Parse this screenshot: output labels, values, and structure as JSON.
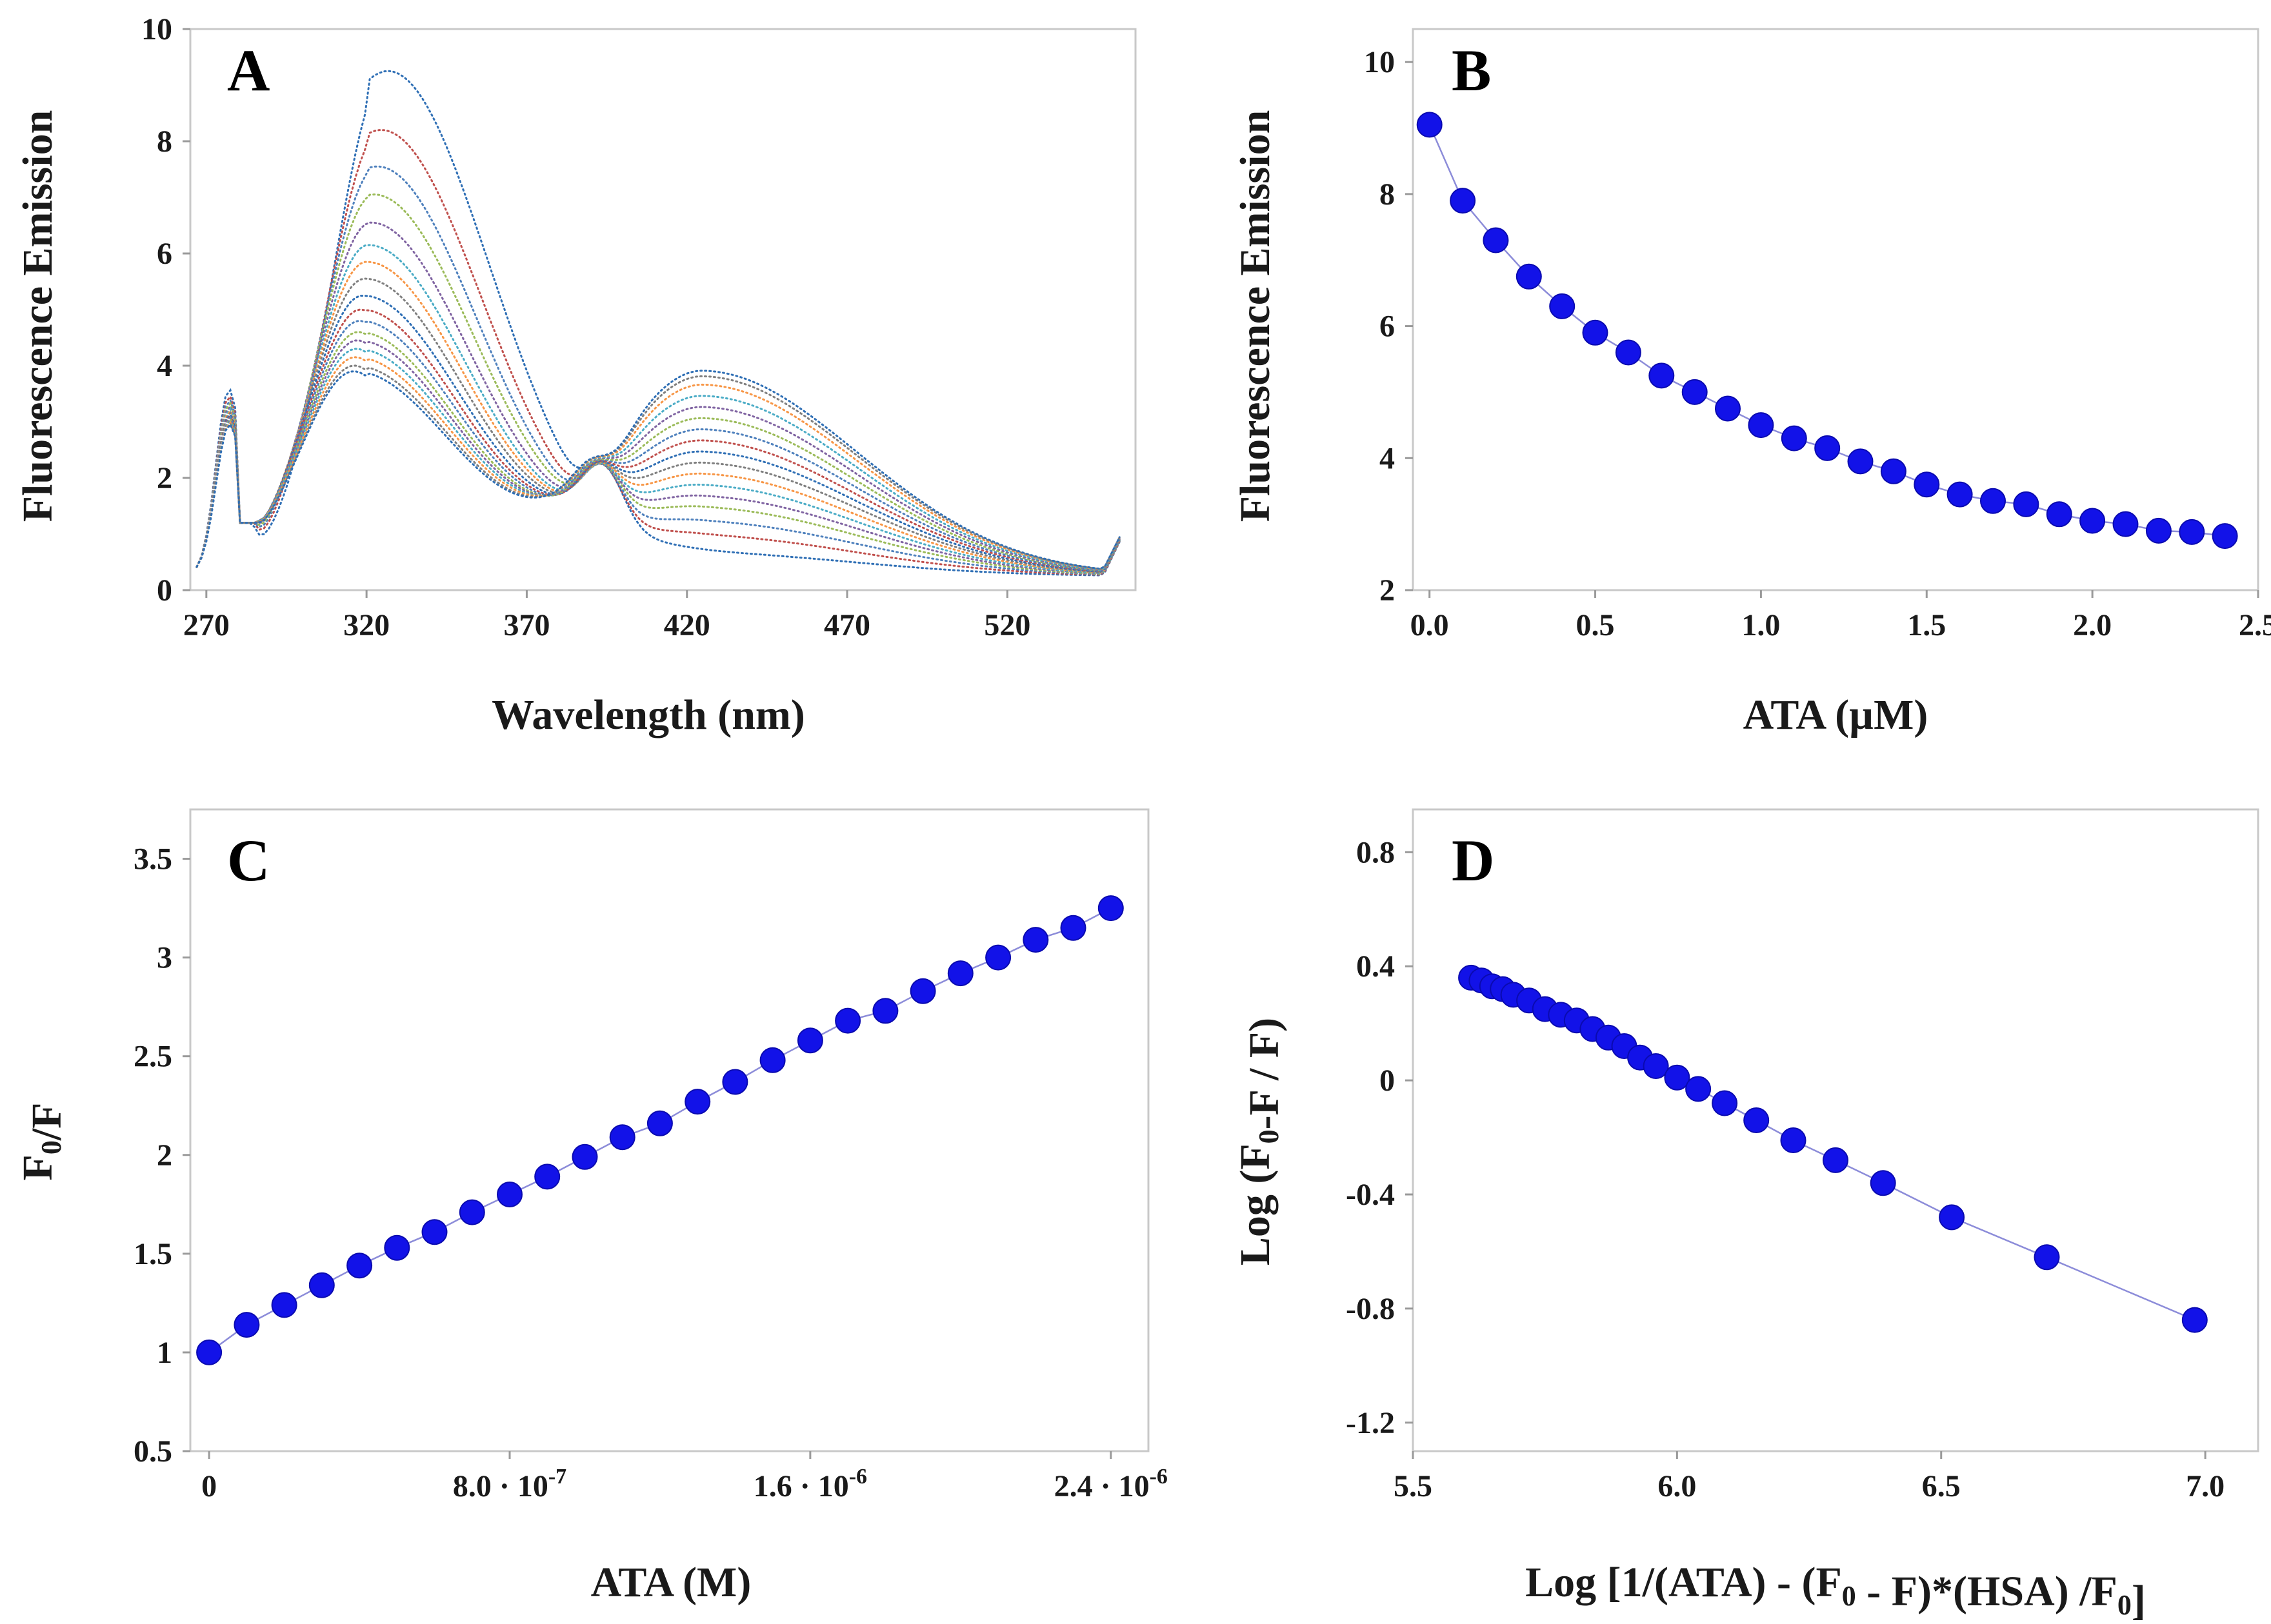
{
  "chart_data": [
    {
      "panel": "A",
      "type": "line",
      "title": "A",
      "xlabel": "Wavelength (nm)",
      "ylabel": "Fluorescence Emission",
      "xlim": [
        265,
        560
      ],
      "ylim": [
        0,
        10
      ],
      "xticks": [
        "270",
        "320",
        "370",
        "420",
        "470",
        "520"
      ],
      "xtick_values": [
        270,
        320,
        370,
        420,
        470,
        520
      ],
      "yticks": [
        "0",
        "2",
        "4",
        "6",
        "8",
        "10"
      ],
      "ytick_values": [
        0,
        2,
        4,
        6,
        8,
        10
      ],
      "isosbestic_point": {
        "x": 393,
        "y": 2.4
      },
      "left_peak_x": 316,
      "right_peak_x": 425,
      "curves": [
        {
          "peak1": 9.0,
          "peak2": 0.4
        },
        {
          "peak1": 7.95,
          "peak2": 0.7
        },
        {
          "peak1": 7.3,
          "peak2": 0.95
        },
        {
          "peak1": 6.8,
          "peak2": 1.2
        },
        {
          "peak1": 6.3,
          "peak2": 1.4
        },
        {
          "peak1": 5.9,
          "peak2": 1.6
        },
        {
          "peak1": 5.6,
          "peak2": 1.8
        },
        {
          "peak1": 5.3,
          "peak2": 2.0
        },
        {
          "peak1": 5.0,
          "peak2": 2.2
        },
        {
          "peak1": 4.75,
          "peak2": 2.4
        },
        {
          "peak1": 4.55,
          "peak2": 2.6
        },
        {
          "peak1": 4.35,
          "peak2": 2.8
        },
        {
          "peak1": 4.2,
          "peak2": 3.0
        },
        {
          "peak1": 4.05,
          "peak2": 3.2
        },
        {
          "peak1": 3.9,
          "peak2": 3.4
        },
        {
          "peak1": 3.75,
          "peak2": 3.55
        },
        {
          "peak1": 3.65,
          "peak2": 3.65
        }
      ],
      "colors": [
        "#2f6fb5",
        "#c0504d",
        "#4f81bd",
        "#9bbb59",
        "#8064a2",
        "#4bacc6",
        "#f79646",
        "#7f7f7f"
      ]
    },
    {
      "panel": "B",
      "type": "scatter",
      "title": "B",
      "xlabel": "ATA  (µM)",
      "ylabel": "Fluorescence Emission",
      "xlim": [
        -0.05,
        2.5
      ],
      "ylim": [
        2,
        10.5
      ],
      "xticks": [
        "0.0",
        "0.5",
        "1.0",
        "1.5",
        "2.0",
        "2.5"
      ],
      "xtick_values": [
        0,
        0.5,
        1.0,
        1.5,
        2.0,
        2.5
      ],
      "yticks": [
        "2",
        "4",
        "6",
        "8",
        "10"
      ],
      "ytick_values": [
        2,
        4,
        6,
        8,
        10
      ],
      "x": [
        0.0,
        0.1,
        0.2,
        0.3,
        0.4,
        0.5,
        0.6,
        0.7,
        0.8,
        0.9,
        1.0,
        1.1,
        1.2,
        1.3,
        1.4,
        1.5,
        1.6,
        1.7,
        1.8,
        1.9,
        2.0,
        2.1,
        2.2,
        2.3,
        2.4
      ],
      "y": [
        9.05,
        7.9,
        7.3,
        6.75,
        6.3,
        5.9,
        5.6,
        5.25,
        5.0,
        4.75,
        4.5,
        4.3,
        4.15,
        3.95,
        3.8,
        3.6,
        3.45,
        3.35,
        3.3,
        3.15,
        3.05,
        3.0,
        2.9,
        2.88,
        2.82
      ],
      "marker_color": "#1212e8",
      "fit": "exponential decay"
    },
    {
      "panel": "C",
      "type": "scatter",
      "title": "C",
      "xlabel": "ATA  (M)",
      "ylabel": "F0/F",
      "xlim": [
        -5e-08,
        2.5e-06
      ],
      "ylim": [
        0.5,
        3.75
      ],
      "xticks": [
        "0",
        "8.0 · 10",
        "1.6 · 10",
        "2.4 · 10"
      ],
      "xtick_exponents": [
        "",
        "-7",
        "-6",
        "-6"
      ],
      "xtick_values": [
        0,
        8e-07,
        1.6e-06,
        2.4e-06
      ],
      "yticks": [
        "0.5",
        "1",
        "1.5",
        "2",
        "2.5",
        "3",
        "3.5"
      ],
      "ytick_values": [
        0.5,
        1,
        1.5,
        2,
        2.5,
        3,
        3.5
      ],
      "x": [
        0,
        1e-07,
        2e-07,
        3e-07,
        4e-07,
        5e-07,
        6e-07,
        7e-07,
        8e-07,
        9e-07,
        1e-06,
        1.1e-06,
        1.2e-06,
        1.3e-06,
        1.4e-06,
        1.5e-06,
        1.6e-06,
        1.7e-06,
        1.8e-06,
        1.9e-06,
        2e-06,
        2.1e-06,
        2.2e-06,
        2.3e-06,
        2.4e-06
      ],
      "y": [
        1.0,
        1.14,
        1.24,
        1.34,
        1.44,
        1.53,
        1.61,
        1.71,
        1.8,
        1.89,
        1.99,
        2.09,
        2.16,
        2.27,
        2.37,
        2.48,
        2.58,
        2.68,
        2.73,
        2.83,
        2.92,
        3.0,
        3.09,
        3.15,
        3.25
      ],
      "marker_color": "#1212e8",
      "fit": "linear"
    },
    {
      "panel": "D",
      "type": "scatter",
      "title": "D",
      "xlabel": "Log [1/(ATA) - (F0 - F)*(HSA) /F0]",
      "ylabel": "Log (F0-F / F)",
      "xlim": [
        5.5,
        7.1
      ],
      "ylim": [
        -1.3,
        0.95
      ],
      "xticks": [
        "5.5",
        "6.0",
        "6.5",
        "7.0"
      ],
      "xtick_values": [
        5.5,
        6.0,
        6.5,
        7.0
      ],
      "yticks": [
        "-1.2",
        "-0.8",
        "-0.4",
        "0",
        "0.4",
        "0.8"
      ],
      "ytick_values": [
        -1.2,
        -0.8,
        -0.4,
        0,
        0.4,
        0.8
      ],
      "x": [
        5.61,
        5.63,
        5.65,
        5.67,
        5.69,
        5.72,
        5.75,
        5.78,
        5.81,
        5.84,
        5.87,
        5.9,
        5.93,
        5.96,
        6.0,
        6.04,
        6.09,
        6.15,
        6.22,
        6.3,
        6.39,
        6.52,
        6.7,
        6.98
      ],
      "y": [
        0.36,
        0.35,
        0.33,
        0.32,
        0.3,
        0.28,
        0.25,
        0.23,
        0.21,
        0.18,
        0.15,
        0.12,
        0.08,
        0.05,
        0.01,
        -0.03,
        -0.08,
        -0.14,
        -0.21,
        -0.28,
        -0.36,
        -0.48,
        -0.62,
        -0.84
      ],
      "marker_color": "#1212e8",
      "fit": "linear"
    }
  ]
}
